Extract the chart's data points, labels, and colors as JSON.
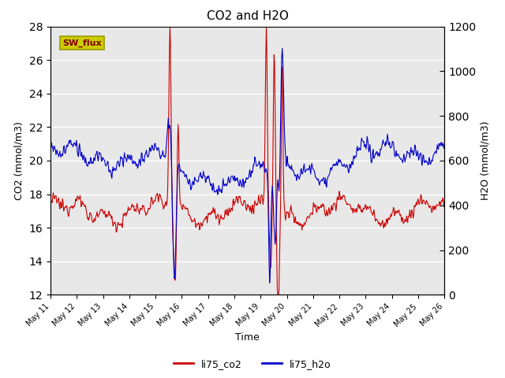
{
  "title": "CO2 and H2O",
  "xlabel": "Time",
  "ylabel_left": "CO2 (mmol/m3)",
  "ylabel_right": "H2O (mmol/m3)",
  "ylim_left": [
    12,
    28
  ],
  "ylim_right": [
    0,
    1200
  ],
  "yticks_left": [
    12,
    14,
    16,
    18,
    20,
    22,
    24,
    26,
    28
  ],
  "yticks_right": [
    0,
    200,
    400,
    600,
    800,
    1000,
    1200
  ],
  "co2_color": "#cc0000",
  "h2o_color": "#0000cc",
  "plot_bg": "#e8e8e8",
  "x_start_day": 11,
  "x_end_day": 26,
  "x_ticks": [
    11,
    12,
    13,
    14,
    15,
    16,
    17,
    18,
    19,
    20,
    21,
    22,
    23,
    24,
    25,
    26
  ],
  "x_tick_labels": [
    "May 11",
    "May 12",
    "May 13",
    "May 14",
    "May 15",
    "May 16",
    "May 17",
    "May 18",
    "May 19",
    "May 20",
    "May 21",
    "May 22",
    "May 23",
    "May 24",
    "May 25",
    "May 26"
  ]
}
